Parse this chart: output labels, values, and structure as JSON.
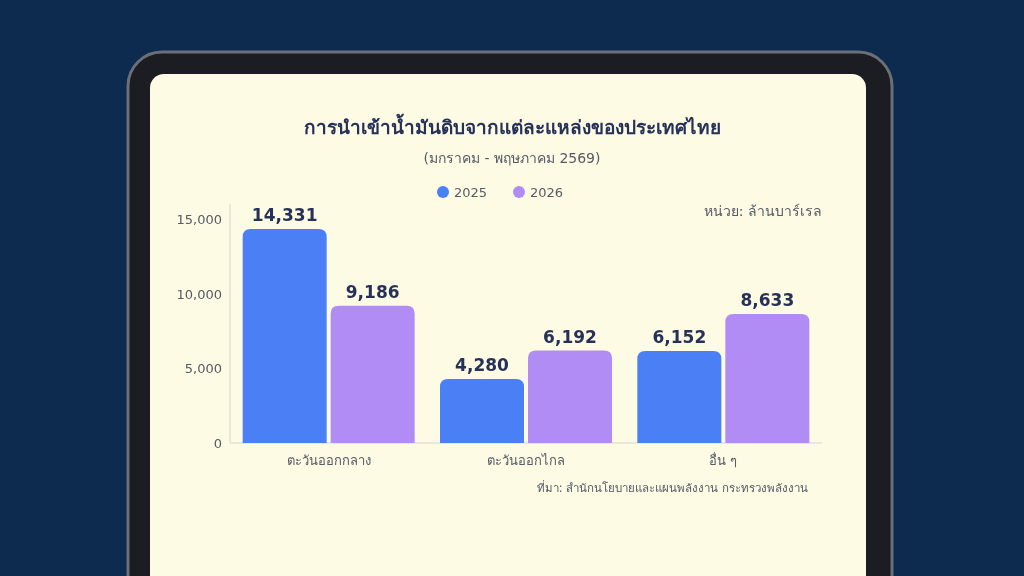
{
  "chart_data": {
    "type": "bar",
    "title": "การนำเข้าน้ำมันดิบจากแต่ละแหล่งของประเทศไทย",
    "subtitle": "(มกราคม - พฤษภาคม 2569)",
    "categories": [
      "ตะวันออกกลาง",
      "ตะวันออกไกล",
      "อื่น ๆ"
    ],
    "series": [
      {
        "name": "2025",
        "color": "#4a7ff5",
        "values": [
          14331,
          4280,
          6152
        ],
        "value_labels": [
          "14,331",
          "4,280",
          "6,152"
        ]
      },
      {
        "name": "2026",
        "color": "#b18cf5",
        "values": [
          9186,
          6192,
          8633
        ],
        "value_labels": [
          "9,186",
          "6,192",
          "8,633"
        ]
      }
    ],
    "ylim": [
      0,
      16000
    ],
    "yticks": [
      0,
      {
        "value": 5000,
        "label": "5,000"
      },
      {
        "value": 10000,
        "label": "10,000"
      },
      {
        "value": 15000,
        "label": "15,000"
      }
    ],
    "grid": false,
    "legend": "top",
    "annotations": [
      "หน่วย: ล้านบาร์เรล",
      "ที่มา: สำนักนโยบายและแผนพลังงาน กระทรวงพลังงาน"
    ]
  }
}
